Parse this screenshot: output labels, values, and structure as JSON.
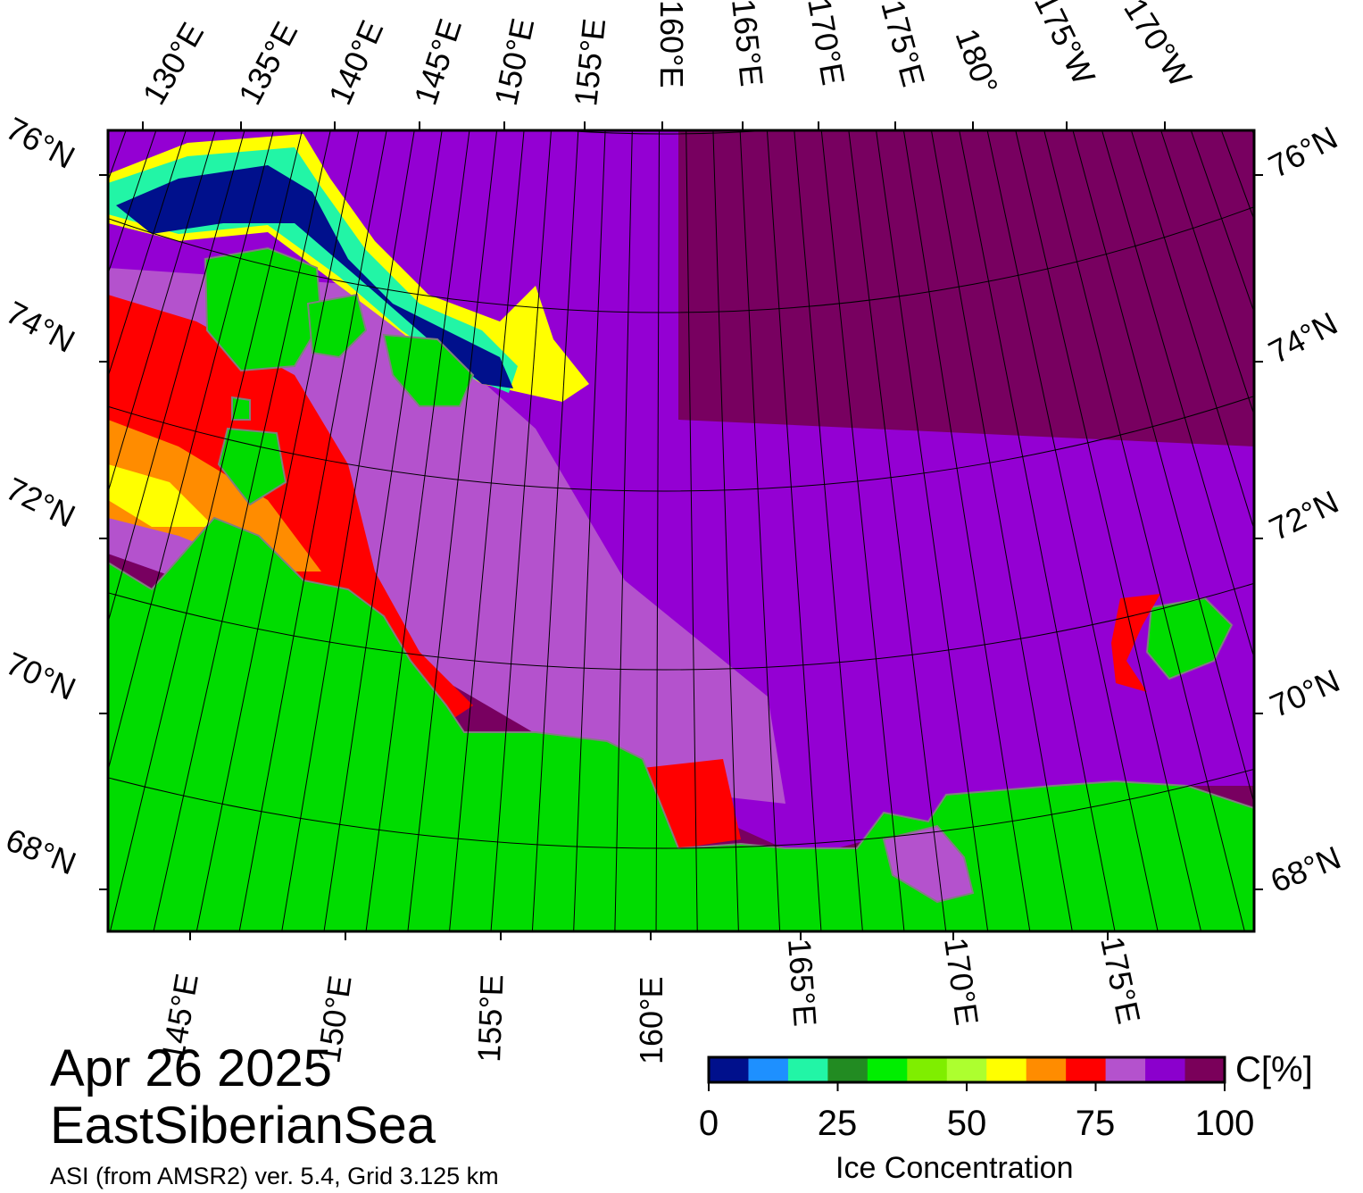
{
  "map": {
    "date": "Apr 26 2025",
    "region": "EastSiberianSea",
    "source": "ASI (from AMSR2) ver. 5.4,  Grid 3.125 km",
    "top_lon_labels": [
      "130°E",
      "135°E",
      "140°E",
      "145°E",
      "150°E",
      "155°E",
      "160°E",
      "165°E",
      "170°E",
      "175°E",
      "180°",
      "175°W",
      "170°W"
    ],
    "bottom_lon_labels": [
      "145°E",
      "150°E",
      "155°E",
      "160°E",
      "165°E",
      "170°E",
      "175°E"
    ],
    "lat_labels": [
      "76°N",
      "74°N",
      "72°N",
      "70°N",
      "68°N"
    ]
  },
  "colorbar": {
    "title": "Ice Concentration",
    "unit": "C[%]",
    "tick_labels": [
      "0",
      "25",
      "50",
      "75",
      "100"
    ],
    "colors": [
      "#00108c",
      "#1e90ff",
      "#22f5a6",
      "#228b22",
      "#00ee00",
      "#7fee00",
      "#adff2f",
      "#ffff00",
      "#ff8c00",
      "#ff0000",
      "#b452cd",
      "#8b00cd",
      "#7a005a"
    ]
  },
  "colors": {
    "land": "#00dc00",
    "full_ice": "#780060",
    "high_ice": "#9400d3",
    "mid_ice": "#b452cd",
    "coast": "#7f7f7f"
  }
}
